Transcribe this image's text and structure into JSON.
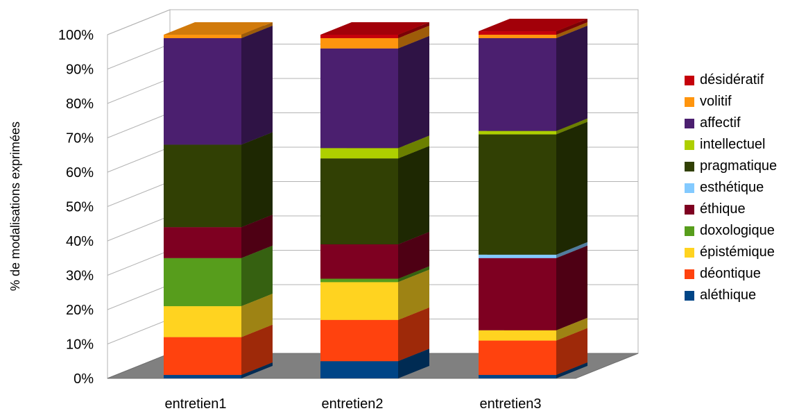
{
  "chart_data": {
    "type": "bar",
    "stacked": true,
    "percent_stacked": true,
    "three_d": true,
    "ylabel": "% de modalisations exprimées",
    "xlabel": "",
    "ylim": [
      0,
      100
    ],
    "y_ticks": [
      "0%",
      "10%",
      "20%",
      "30%",
      "40%",
      "50%",
      "60%",
      "70%",
      "80%",
      "90%",
      "100%"
    ],
    "categories": [
      "entretien1",
      "entretien2",
      "entretien3"
    ],
    "legend_position": "right",
    "series": [
      {
        "name": "aléthique",
        "color": "#004586",
        "values": [
          1,
          5,
          1
        ]
      },
      {
        "name": "déontique",
        "color": "#FF420E",
        "values": [
          11,
          12,
          10
        ]
      },
      {
        "name": "épistémique",
        "color": "#FFD320",
        "values": [
          9,
          11,
          3
        ]
      },
      {
        "name": "doxologique",
        "color": "#579D1C",
        "values": [
          14,
          1,
          0
        ]
      },
      {
        "name": "éthique",
        "color": "#7E0021",
        "values": [
          9,
          10,
          21
        ]
      },
      {
        "name": "esthétique",
        "color": "#83CAFF",
        "values": [
          0,
          0,
          1
        ]
      },
      {
        "name": "pragmatique",
        "color": "#314004",
        "values": [
          24,
          25,
          35
        ]
      },
      {
        "name": "intellectuel",
        "color": "#AECF00",
        "values": [
          0,
          3,
          1
        ]
      },
      {
        "name": "affectif",
        "color": "#4B1F6F",
        "values": [
          31,
          29,
          27
        ]
      },
      {
        "name": "volitif",
        "color": "#FF950E",
        "values": [
          1,
          3,
          1
        ]
      },
      {
        "name": "désidératif",
        "color": "#C5000B",
        "values": [
          0,
          1,
          1
        ]
      }
    ]
  }
}
